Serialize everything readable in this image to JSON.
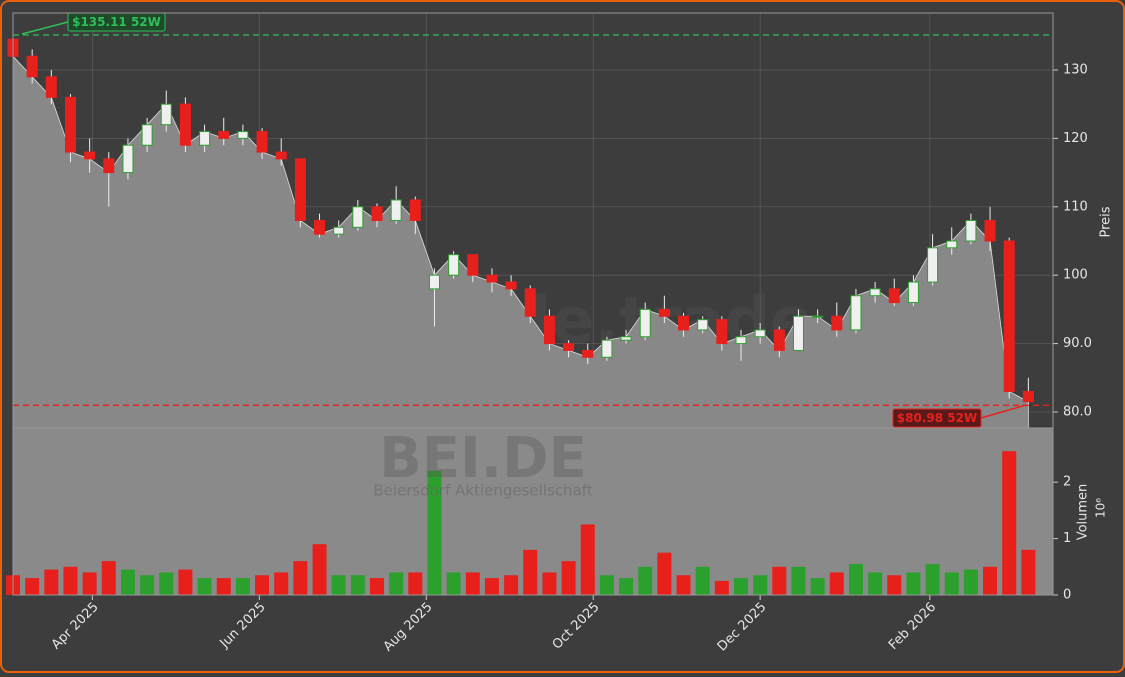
{
  "chart_data": {
    "type": "candlestick",
    "ylabel": "Preis",
    "volume_label": "Volumen",
    "volume_scale_label": "10⁶",
    "watermark": "forexsignale.trade",
    "symbol": "BEI.DE",
    "company": "Beiersdorf Aktiengesellschaft",
    "up_color": "#2ca02c",
    "down_color": "#e8201c",
    "x": [
      "2025-03-03",
      "2025-03-10",
      "2025-03-17",
      "2025-03-24",
      "2025-03-31",
      "2025-04-07",
      "2025-04-14",
      "2025-04-21",
      "2025-04-28",
      "2025-05-05",
      "2025-05-12",
      "2025-05-19",
      "2025-05-26",
      "2025-06-02",
      "2025-06-09",
      "2025-06-16",
      "2025-06-23",
      "2025-06-30",
      "2025-07-07",
      "2025-07-14",
      "2025-07-21",
      "2025-07-28",
      "2025-08-04",
      "2025-08-11",
      "2025-08-18",
      "2025-08-25",
      "2025-09-01",
      "2025-09-08",
      "2025-09-15",
      "2025-09-22",
      "2025-09-29",
      "2025-10-06",
      "2025-10-13",
      "2025-10-20",
      "2025-10-27",
      "2025-11-03",
      "2025-11-10",
      "2025-11-17",
      "2025-11-24",
      "2025-12-01",
      "2025-12-08",
      "2025-12-15",
      "2025-12-22",
      "2025-12-29",
      "2026-01-05",
      "2026-01-12",
      "2026-01-19",
      "2026-01-26",
      "2026-02-02",
      "2026-02-09",
      "2026-02-16",
      "2026-02-23",
      "2026-03-02",
      "2026-03-09"
    ],
    "open": [
      134.5,
      132,
      129,
      126,
      118,
      117,
      115,
      119,
      122,
      125,
      119,
      121,
      120,
      121,
      118,
      117,
      108,
      106,
      107,
      110,
      108,
      111,
      98,
      100,
      103,
      100,
      99,
      98,
      94,
      90,
      89,
      88,
      90.5,
      91,
      95,
      94,
      92,
      93.5,
      90,
      91,
      92,
      89,
      94,
      94,
      92,
      97,
      98,
      96,
      99,
      104,
      105,
      108,
      105,
      83
    ],
    "high": [
      135.11,
      133,
      130,
      126.5,
      120,
      118,
      120,
      123,
      127,
      126,
      122,
      123,
      122,
      121.5,
      120,
      117,
      109,
      108,
      111,
      110.5,
      113,
      111.5,
      101,
      103.5,
      103,
      101,
      100,
      98.5,
      95,
      90.5,
      90,
      91,
      92,
      96,
      97,
      94.5,
      94,
      94,
      92,
      93,
      92.5,
      95,
      95,
      96,
      98,
      99,
      99.5,
      100,
      106,
      107,
      109,
      110,
      105.5,
      85
    ],
    "low": [
      131,
      128,
      125,
      116.5,
      115,
      110,
      114,
      118,
      121,
      118,
      118,
      119,
      119,
      117,
      116,
      107,
      105.5,
      105.5,
      106.5,
      107,
      107.5,
      106,
      92.5,
      99.5,
      99,
      97.5,
      97,
      93,
      89,
      88,
      87,
      87.5,
      90,
      90.5,
      93,
      91,
      91.5,
      89,
      87.5,
      90,
      88,
      89,
      93,
      91,
      91.5,
      96,
      95.5,
      95.5,
      98.5,
      103,
      104.5,
      103.5,
      82,
      80.98
    ],
    "close": [
      132,
      129,
      126,
      118,
      117,
      115,
      119,
      122,
      125,
      119,
      121,
      120,
      121,
      118,
      117,
      108,
      106,
      107,
      110,
      108,
      111,
      108,
      100,
      103,
      100,
      99,
      98,
      94,
      90,
      89,
      88,
      90.5,
      91,
      95,
      94,
      92,
      93.5,
      90,
      91,
      92,
      89,
      94,
      94,
      92,
      97,
      98,
      96,
      99,
      104,
      105,
      108,
      105,
      83,
      81.5
    ],
    "volume": [
      0.35,
      0.3,
      0.45,
      0.5,
      0.4,
      0.6,
      0.45,
      0.35,
      0.4,
      0.45,
      0.3,
      0.3,
      0.3,
      0.35,
      0.4,
      0.6,
      0.9,
      0.35,
      0.35,
      0.3,
      0.4,
      0.4,
      2.2,
      0.4,
      0.4,
      0.3,
      0.35,
      0.8,
      0.4,
      0.6,
      1.25,
      0.35,
      0.3,
      0.5,
      0.75,
      0.35,
      0.5,
      0.25,
      0.3,
      0.35,
      0.5,
      0.5,
      0.3,
      0.4,
      0.55,
      0.4,
      0.35,
      0.4,
      0.55,
      0.4,
      0.45,
      0.5,
      2.55,
      0.8
    ],
    "xlim": [
      "2025-03-03",
      "2026-03-18"
    ],
    "xticks": [
      {
        "value": "2025-04-01",
        "label": "Apr 2025"
      },
      {
        "value": "2025-06-01",
        "label": "Jun 2025"
      },
      {
        "value": "2025-08-01",
        "label": "Aug 2025"
      },
      {
        "value": "2025-10-01",
        "label": "Oct 2025"
      },
      {
        "value": "2025-12-01",
        "label": "Dec 2025"
      },
      {
        "value": "2026-02-01",
        "label": "Feb 2026"
      }
    ],
    "ylim": [
      77.66,
      138.33
    ],
    "yticks": [
      {
        "value": 80,
        "label": "80.0"
      },
      {
        "value": 90,
        "label": "90.0"
      },
      {
        "value": 100,
        "label": "100"
      },
      {
        "value": 110,
        "label": "110"
      },
      {
        "value": 120,
        "label": "120"
      },
      {
        "value": 130,
        "label": "130"
      }
    ],
    "volume_ylim": [
      0,
      2.96
    ],
    "volume_yticks": [
      0,
      1,
      2
    ],
    "grid": true,
    "annotations": [
      {
        "label": "$135.11 52W",
        "value": 135.11,
        "color": "#2fbf5a"
      },
      {
        "label": "$80.98 52W",
        "value": 80.98,
        "color": "#e8201c"
      }
    ]
  }
}
